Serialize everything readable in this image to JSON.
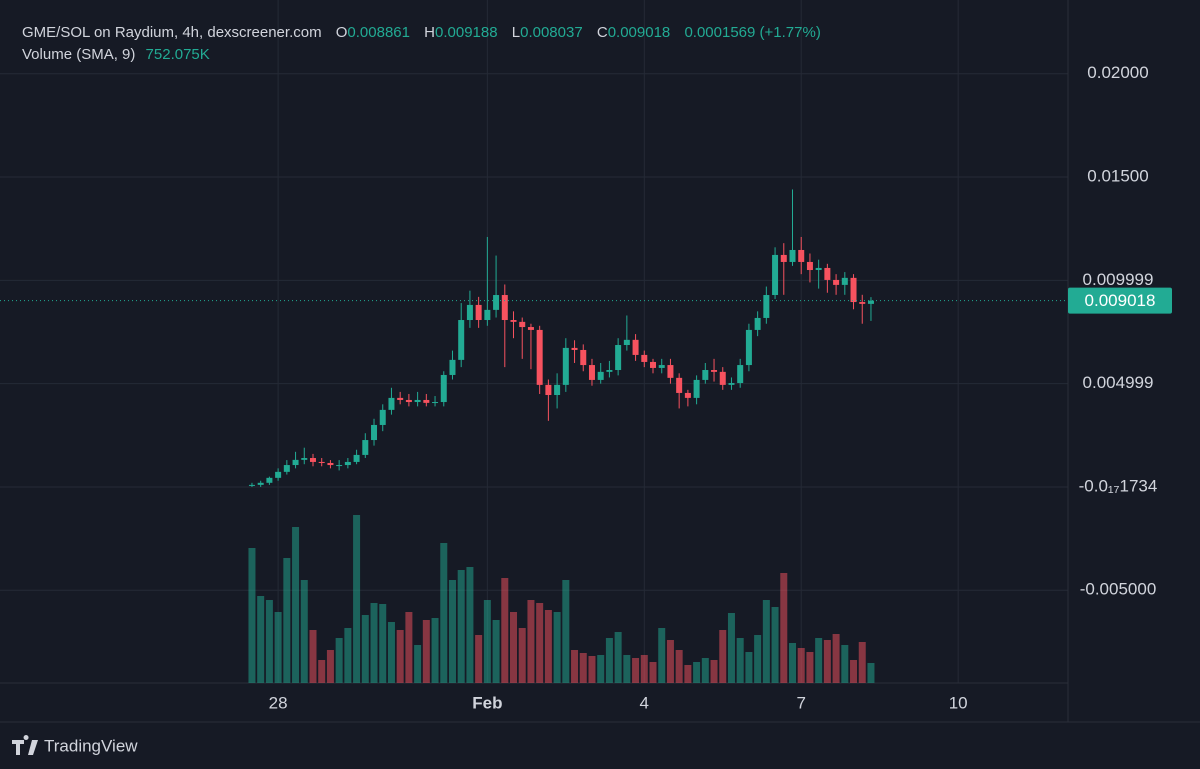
{
  "chart_data": {
    "type": "candlestick",
    "title": "GME/SOL on Raydium, 4h, dexscreener.com",
    "ohlc_labels": [
      "O",
      "H",
      "L",
      "C"
    ],
    "change": 0.0001569,
    "change_percent": {
      "value": 1.77,
      "label": "(+1.77%)"
    },
    "volume_label": "Volume (SMA, 9)",
    "volume_sma": {
      "value": 752075,
      "label": "752.075K"
    },
    "watermark": "TradingView",
    "up_color": "#22ab94",
    "down_color": "#f7525f",
    "grid": true,
    "open": [
      5e-05,
      0.0001,
      0.0002,
      0.00044,
      0.00073,
      0.00106,
      0.00131,
      0.0014,
      0.00121,
      0.00116,
      0.00106,
      0.00106,
      0.00121,
      0.00155,
      0.00227,
      0.003,
      0.00373,
      0.00431,
      0.00421,
      0.00411,
      0.00421,
      0.00407,
      0.00411,
      0.00542,
      0.00615,
      0.00808,
      0.00881,
      0.00808,
      0.00857,
      0.00929,
      0.00808,
      0.00799,
      0.00774,
      0.0076,
      0.00494,
      0.00445,
      0.00494,
      0.00673,
      0.00663,
      0.0059,
      0.00518,
      0.00557,
      0.00566,
      0.00687,
      0.00712,
      0.00639,
      0.00605,
      0.00576,
      0.0059,
      0.00528,
      0.00455,
      0.00431,
      0.00518,
      0.00566,
      0.00557,
      0.00494,
      0.00503,
      0.0059,
      0.0076,
      0.00818,
      0.00929,
      0.01123,
      0.01089,
      0.01147,
      0.01089,
      0.0105,
      0.0106,
      0.01002,
      0.00978,
      0.01012,
      0.00895,
      0.008861
    ],
    "high": [
      0.0002,
      0.0003,
      0.0005,
      0.0009,
      0.0013,
      0.0017,
      0.0019,
      0.0016,
      0.0014,
      0.0013,
      0.0013,
      0.0014,
      0.0018,
      0.0026,
      0.0033,
      0.004,
      0.0048,
      0.0046,
      0.0045,
      0.0046,
      0.0045,
      0.0044,
      0.0056,
      0.0066,
      0.0089,
      0.0095,
      0.0092,
      0.0121,
      0.0112,
      0.0098,
      0.0085,
      0.0082,
      0.0079,
      0.0078,
      0.0052,
      0.0055,
      0.0072,
      0.0071,
      0.0069,
      0.0062,
      0.006,
      0.0061,
      0.0072,
      0.0083,
      0.0074,
      0.0066,
      0.0062,
      0.0062,
      0.0062,
      0.0055,
      0.0047,
      0.0054,
      0.006,
      0.0062,
      0.0058,
      0.0053,
      0.0062,
      0.0079,
      0.0085,
      0.0097,
      0.0116,
      0.0118,
      0.0144,
      0.0121,
      0.0113,
      0.011,
      0.0108,
      0.0103,
      0.0104,
      0.0103,
      0.0093,
      0.009188
    ],
    "low": [
      0,
      0,
      0.0001,
      0.0003,
      0.0006,
      0.0009,
      0.0011,
      0.001,
      0.001,
      0.0009,
      0.0008,
      0.0009,
      0.0011,
      0.0014,
      0.002,
      0.0027,
      0.0035,
      0.004,
      0.0039,
      0.0039,
      0.0039,
      0.0039,
      0.0039,
      0.0052,
      0.0058,
      0.0077,
      0.0077,
      0.0078,
      0.0082,
      0.0058,
      0.0072,
      0.0062,
      0.0057,
      0.0045,
      0.0032,
      0.0038,
      0.0046,
      0.006,
      0.0056,
      0.0049,
      0.005,
      0.0053,
      0.0054,
      0.0066,
      0.0061,
      0.0058,
      0.0055,
      0.0055,
      0.005,
      0.0038,
      0.0039,
      0.004,
      0.005,
      0.0051,
      0.0047,
      0.0047,
      0.0048,
      0.0056,
      0.0073,
      0.0079,
      0.0091,
      0.0093,
      0.0107,
      0.0103,
      0.0099,
      0.0096,
      0.0094,
      0.0093,
      0.0093,
      0.0086,
      0.0079,
      0.008037
    ],
    "close": [
      0.0001,
      0.0002,
      0.00044,
      0.00073,
      0.00106,
      0.00131,
      0.0014,
      0.00121,
      0.00116,
      0.00106,
      0.00106,
      0.00121,
      0.00155,
      0.00227,
      0.003,
      0.00373,
      0.00431,
      0.00421,
      0.00411,
      0.00421,
      0.00407,
      0.00411,
      0.00542,
      0.00615,
      0.00808,
      0.00881,
      0.00808,
      0.00857,
      0.00929,
      0.00808,
      0.00799,
      0.00774,
      0.0076,
      0.00494,
      0.00445,
      0.00494,
      0.00673,
      0.00663,
      0.0059,
      0.00518,
      0.00557,
      0.00566,
      0.00687,
      0.00712,
      0.00639,
      0.00605,
      0.00576,
      0.0059,
      0.00528,
      0.00455,
      0.00431,
      0.00518,
      0.00566,
      0.00557,
      0.00494,
      0.00503,
      0.0059,
      0.0076,
      0.00818,
      0.00929,
      0.01123,
      0.01089,
      0.01147,
      0.01089,
      0.0105,
      0.0106,
      0.01002,
      0.00978,
      0.01012,
      0.00895,
      0.008861,
      0.009018
    ],
    "volume": [
      2700000,
      1740000,
      1660000,
      1420000,
      2500000,
      3120000,
      2060000,
      1060000,
      460000,
      660000,
      900000,
      1100000,
      3360000,
      1360000,
      1600000,
      1580000,
      1220000,
      1060000,
      1420000,
      760000,
      1260000,
      1300000,
      2800000,
      2060000,
      2260000,
      2320000,
      960000,
      1660000,
      1260000,
      2100000,
      1420000,
      1100000,
      1660000,
      1600000,
      1460000,
      1420000,
      2060000,
      660000,
      600000,
      540000,
      560000,
      900000,
      1020000,
      560000,
      500000,
      560000,
      420000,
      1100000,
      860000,
      660000,
      360000,
      420000,
      500000,
      460000,
      1060000,
      1400000,
      900000,
      620000,
      960000,
      1660000,
      1520000,
      2200000,
      800000,
      700000,
      620000,
      900000,
      860000,
      980000,
      760000,
      460000,
      820000,
      400000
    ],
    "xlim": [
      -28.9,
      93.6
    ],
    "xticks": [
      {
        "value": 3,
        "label": "28"
      },
      {
        "value": 27,
        "label": "Feb"
      },
      {
        "value": 45,
        "label": "4"
      },
      {
        "value": 63,
        "label": "7"
      },
      {
        "value": 81,
        "label": "10"
      }
    ],
    "ylim": [
      -0.00949,
      0.02357
    ],
    "yticks": [
      {
        "value": 0.02,
        "label": "0.02000"
      },
      {
        "value": 0.015,
        "label": "0.01500"
      },
      0.009999,
      0.004999,
      {
        "value": -1.734e-18,
        "label": "-0.0₁₇1734"
      },
      {
        "value": -0.005,
        "label": "-0.005000"
      }
    ],
    "volume_ylim": [
      0,
      3400000
    ]
  }
}
